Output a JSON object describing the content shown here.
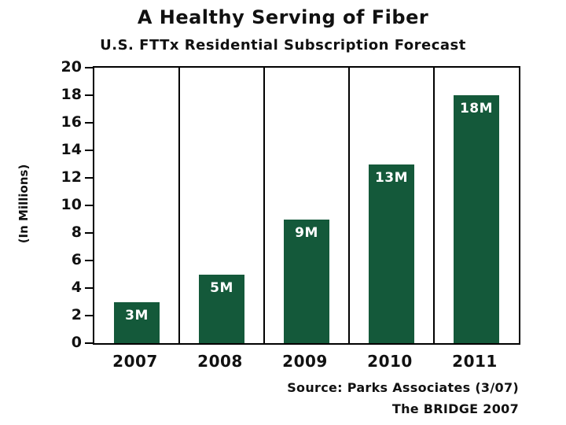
{
  "title": "A Healthy Serving of Fiber",
  "chart_data": {
    "type": "bar",
    "title": "U.S. FTTx Residential Subscription Forecast",
    "categories": [
      "2007",
      "2008",
      "2009",
      "2010",
      "2011"
    ],
    "values": [
      3,
      5,
      9,
      13,
      18
    ],
    "bar_labels": [
      "3M",
      "5M",
      "9M",
      "13M",
      "18M"
    ],
    "xlabel": "",
    "ylabel": "(In Millions)",
    "ylim": [
      0,
      20
    ],
    "ytick_step": 2,
    "bar_color": "#14593a",
    "bar_label_color": "#ffffff",
    "grid": "vertical category separators, full plot border",
    "legend": "none"
  },
  "source_line1": "Source: Parks Associates (3/07)",
  "source_line2": "The BRIDGE 2007"
}
